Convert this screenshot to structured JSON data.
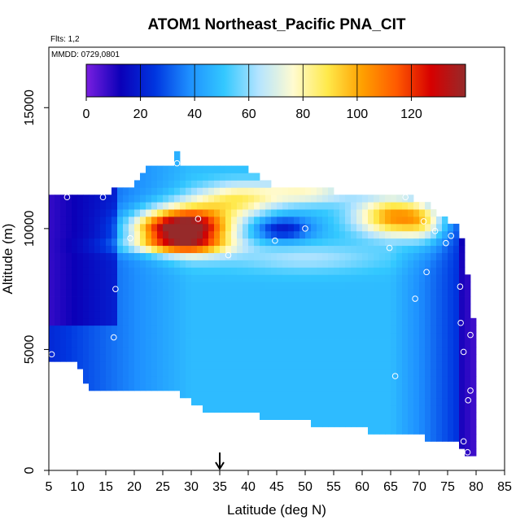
{
  "chart_data": {
    "type": "heatmap",
    "title": "ATOM1 Northeast_Pacific PNA_CIT",
    "flights_label": "Flts: 1,2",
    "dates_label": "MMDD: 0729,0801",
    "xlabel": "Latitude (deg N)",
    "ylabel": "Altitude (m)",
    "xlim": [
      5,
      85
    ],
    "ylim": [
      0,
      17500
    ],
    "x_ticks": [
      5,
      10,
      15,
      20,
      25,
      30,
      35,
      40,
      45,
      50,
      55,
      60,
      65,
      70,
      75,
      80,
      85
    ],
    "y_ticks": [
      0,
      5000,
      10000,
      15000
    ],
    "colorbar": {
      "min": 0,
      "max": 140,
      "ticks": [
        0,
        20,
        40,
        60,
        80,
        100,
        120
      ],
      "colors": [
        "#7a1fe0",
        "#0b00b8",
        "#0036e0",
        "#1e90ff",
        "#33c8ff",
        "#b4e4ff",
        "#fffbd0",
        "#ffe94a",
        "#ffa000",
        "#ff5a00",
        "#d60000",
        "#962a2a"
      ],
      "legend_position": "top-inside"
    },
    "latitude_marker": 35,
    "sample_points": [
      {
        "lat": 5.5,
        "alt": 4800
      },
      {
        "lat": 8.2,
        "alt": 11300
      },
      {
        "lat": 14.5,
        "alt": 11300
      },
      {
        "lat": 16.7,
        "alt": 7500
      },
      {
        "lat": 16.4,
        "alt": 5500
      },
      {
        "lat": 19.3,
        "alt": 9600
      },
      {
        "lat": 27.5,
        "alt": 12700
      },
      {
        "lat": 31.2,
        "alt": 10400
      },
      {
        "lat": 36.5,
        "alt": 8900
      },
      {
        "lat": 44.7,
        "alt": 9500
      },
      {
        "lat": 50,
        "alt": 10000
      },
      {
        "lat": 64.8,
        "alt": 9200
      },
      {
        "lat": 67.6,
        "alt": 11300
      },
      {
        "lat": 70.8,
        "alt": 10300
      },
      {
        "lat": 72.8,
        "alt": 9900
      },
      {
        "lat": 74.7,
        "alt": 9400
      },
      {
        "lat": 75.6,
        "alt": 9700
      },
      {
        "lat": 71.3,
        "alt": 8200
      },
      {
        "lat": 69.3,
        "alt": 7100
      },
      {
        "lat": 77.2,
        "alt": 7600
      },
      {
        "lat": 77.3,
        "alt": 6100
      },
      {
        "lat": 79,
        "alt": 5600
      },
      {
        "lat": 77.8,
        "alt": 4900
      },
      {
        "lat": 65.8,
        "alt": 3900
      },
      {
        "lat": 79,
        "alt": 3300
      },
      {
        "lat": 78.6,
        "alt": 2900
      },
      {
        "lat": 77.8,
        "alt": 1200
      },
      {
        "lat": 78.5,
        "alt": 750
      }
    ]
  }
}
